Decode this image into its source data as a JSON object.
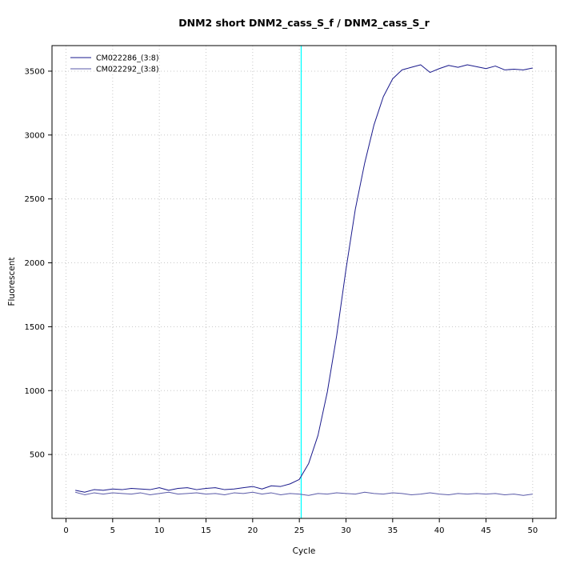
{
  "chart_data": {
    "type": "line",
    "title": "DNM2 short DNM2_cass_S_f / DNM2_cass_S_r",
    "xlabel": "Cycle",
    "ylabel": "Fluorescent",
    "xlim": [
      -1.5,
      52.5
    ],
    "ylim": [
      0,
      3700
    ],
    "x_ticks": [
      0,
      5,
      10,
      15,
      20,
      25,
      30,
      35,
      40,
      45,
      50
    ],
    "y_ticks": [
      500,
      1000,
      1500,
      2000,
      2500,
      3000,
      3500
    ],
    "grid": "dotted",
    "legend_position": "top-left-inside",
    "grid_color": "#c8c8c8",
    "threshold_line": {
      "x": 25.2,
      "color": "#00ffff"
    },
    "series": [
      {
        "name": "CM022286_(3:8)",
        "color": "#1a1a8c",
        "x": [
          1,
          2,
          3,
          4,
          5,
          6,
          7,
          8,
          9,
          10,
          11,
          12,
          13,
          14,
          15,
          16,
          17,
          18,
          19,
          20,
          21,
          22,
          23,
          24,
          25,
          26,
          27,
          28,
          29,
          30,
          31,
          32,
          33,
          34,
          35,
          36,
          37,
          38,
          39,
          40,
          41,
          42,
          43,
          44,
          45,
          46,
          47,
          48,
          49,
          50
        ],
        "values": [
          220,
          205,
          225,
          220,
          230,
          225,
          235,
          230,
          225,
          240,
          220,
          235,
          240,
          225,
          235,
          240,
          225,
          230,
          240,
          250,
          230,
          255,
          250,
          270,
          305,
          430,
          650,
          990,
          1430,
          1950,
          2420,
          2780,
          3080,
          3300,
          3440,
          3510,
          3530,
          3550,
          3490,
          3520,
          3545,
          3530,
          3550,
          3535,
          3520,
          3540,
          3510,
          3515,
          3510,
          3525
        ]
      },
      {
        "name": "CM022292_(3:8)",
        "color": "#5a5aa8",
        "x": [
          1,
          2,
          3,
          4,
          5,
          6,
          7,
          8,
          9,
          10,
          11,
          12,
          13,
          14,
          15,
          16,
          17,
          18,
          19,
          20,
          21,
          22,
          23,
          24,
          25,
          26,
          27,
          28,
          29,
          30,
          31,
          32,
          33,
          34,
          35,
          36,
          37,
          38,
          39,
          40,
          41,
          42,
          43,
          44,
          45,
          46,
          47,
          48,
          49,
          50
        ],
        "values": [
          205,
          185,
          200,
          190,
          200,
          195,
          190,
          200,
          185,
          195,
          205,
          190,
          195,
          200,
          190,
          195,
          185,
          200,
          195,
          205,
          190,
          200,
          185,
          195,
          190,
          180,
          195,
          190,
          200,
          195,
          190,
          205,
          195,
          190,
          200,
          195,
          185,
          190,
          200,
          190,
          185,
          195,
          190,
          195,
          190,
          195,
          185,
          190,
          180,
          190
        ]
      }
    ]
  }
}
